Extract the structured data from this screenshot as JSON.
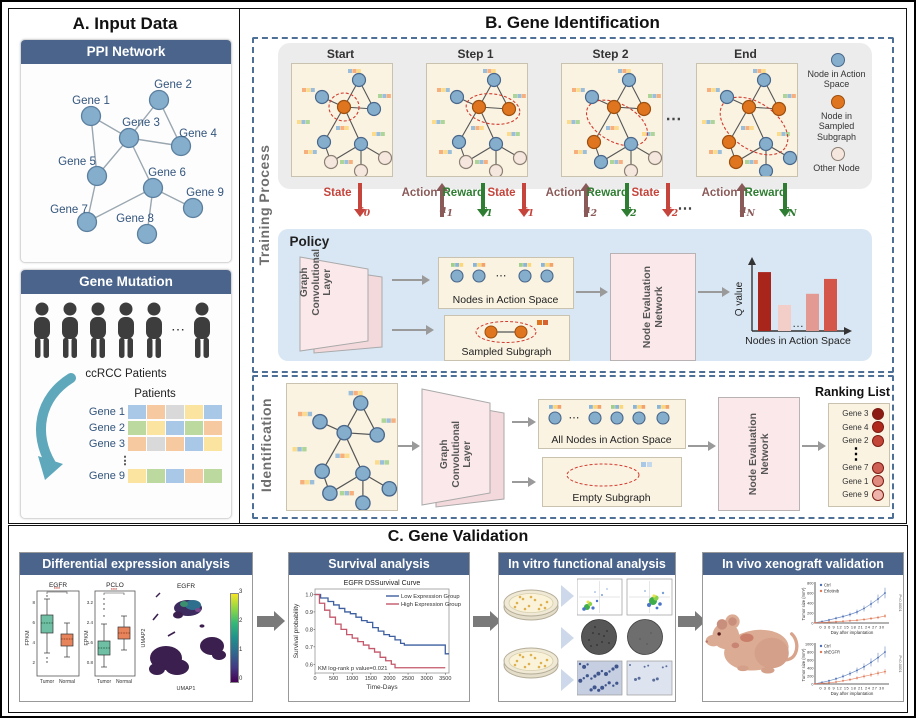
{
  "panelA": {
    "title": "A. Input Data",
    "ppi": {
      "header": "PPI Network",
      "genes": [
        "Gene 1",
        "Gene 2",
        "Gene 3",
        "Gene 4",
        "Gene 5",
        "Gene 6",
        "Gene 7",
        "Gene 8",
        "Gene 9"
      ]
    },
    "mutation": {
      "header": "Gene Mutation",
      "patients_caption": "ccRCC Patients",
      "ellipsis": "⋯",
      "matrix_title": "Patients",
      "rows": [
        {
          "label": "Gene 1",
          "cells": [
            "#a9c7e6",
            "#f6c9a0",
            "#d9d9d9",
            "#fbe3a0",
            "#a9c7e6"
          ]
        },
        {
          "label": "Gene 2",
          "cells": [
            "#bcd9a0",
            "#fbe3a0",
            "#a9c7e6",
            "#bcd9a0",
            "#f6c9a0"
          ]
        },
        {
          "label": "Gene 3",
          "cells": [
            "#f6c9a0",
            "#d9d9d9",
            "#f6c9a0",
            "#a9c7e6",
            "#fbe3a0"
          ]
        },
        {
          "label": "⋮",
          "dots": true
        },
        {
          "label": "Gene 9",
          "cells": [
            "#fbe3a0",
            "#bcd9a0",
            "#a9c7e6",
            "#f6c9a0",
            "#bcd9a0"
          ]
        }
      ]
    }
  },
  "panelB": {
    "title": "B. Gene Identification",
    "training_label": "Training Process",
    "identification_label": "Identification",
    "steps": [
      "Start",
      "Step 1",
      "Step 2",
      "End"
    ],
    "ellipsis": "⋯",
    "legend": [
      {
        "label": "Node in Action Space",
        "color": "#85adcc"
      },
      {
        "label": "Node in Sampled Subgraph",
        "color": "#e0751f"
      },
      {
        "label": "Other Node",
        "color": "#f6e7de"
      }
    ],
    "sig": {
      "state": "State",
      "action": "Action",
      "reward": "Reward",
      "colors": {
        "state": "#c5443c",
        "action": "#8a5a58",
        "reward": "#2f7d32"
      },
      "subs": {
        "s0": {
          "v": "s",
          "i": "0"
        },
        "a1": {
          "v": "a",
          "i": "1"
        },
        "r1": {
          "v": "r",
          "i": "1"
        },
        "s1": {
          "v": "s",
          "i": "1"
        },
        "a2": {
          "v": "a",
          "i": "2"
        },
        "r2": {
          "v": "r",
          "i": "2"
        },
        "s2": {
          "v": "s",
          "i": "2"
        },
        "aN": {
          "v": "a",
          "i": "N"
        },
        "rN": {
          "v": "r",
          "i": "N"
        }
      }
    },
    "policy": {
      "title": "Policy",
      "gcl": "Graph Convolutional Layer",
      "nodes_box": "Nodes in Action Space",
      "box_ellipsis": "⋯",
      "sampled_box": "Sampled Subgraph",
      "nen": "Node Evaluation Network",
      "qchart": {
        "ylabel": "Q value",
        "xlabel": "Nodes in Action Space",
        "bars": [
          0.95,
          0.42,
          null,
          0.6,
          0.84
        ],
        "bar_colors": [
          "#a8251c",
          "#f3cdc8",
          null,
          "#e29a92",
          "#d4564a"
        ]
      }
    },
    "identification": {
      "gcl": "Graph Convolutional Layer",
      "all_nodes_box": "All Nodes in Action Space",
      "empty_box": "Empty Subgraph",
      "nen": "Node Evaluation Network",
      "ranking_title": "Ranking List",
      "ranking": [
        {
          "label": "Gene 3",
          "color": "#8c1a12"
        },
        {
          "label": "Gene 4",
          "color": "#b02a1c"
        },
        {
          "label": "Gene 2",
          "color": "#c44638"
        },
        {
          "label": "⋮",
          "dots": true
        },
        {
          "label": "Gene 7",
          "color": "#cf6055"
        },
        {
          "label": "Gene 1",
          "color": "#e08a80"
        },
        {
          "label": "Gene 9",
          "color": "#eeb3ab"
        }
      ]
    }
  },
  "panelC": {
    "title": "C. Gene Validation",
    "de": {
      "header": "Differential expression analysis",
      "egfr": {
        "title": "EGFR",
        "ylabel": "FPKM",
        "sig": "***",
        "yticks": [
          "8",
          "6",
          "4",
          "2"
        ],
        "xticks": [
          "Tumor",
          "Normal"
        ]
      },
      "pclo": {
        "title": "PCLO",
        "ylabel": "FPKM",
        "sig": "***",
        "yticks": [
          "3.2",
          "2.4",
          "1.6",
          "0.8"
        ],
        "xticks": [
          "Tumor",
          "Normal"
        ]
      },
      "umap": {
        "title": "EGFR",
        "xlabel": "UMAP1",
        "ylabel": "UMAP2",
        "cticks": [
          "3",
          "2",
          "1",
          "0"
        ]
      }
    },
    "survival": {
      "header": "Survival analysis",
      "title": "EGFR DSSurvival Curve",
      "ylabel": "Survival probability",
      "xlabel": "Time-Days",
      "yticks": [
        "1.0",
        "0.9",
        "0.8",
        "0.7",
        "0.6"
      ],
      "xticks": [
        "0",
        "500",
        "1000",
        "1500",
        "2000",
        "2500",
        "3000",
        "3500"
      ],
      "legend": [
        {
          "label": "Low Expression Group",
          "color": "#3d5fa0"
        },
        {
          "label": "High Expression Group",
          "color": "#c4576a"
        }
      ],
      "annotation": "KM log-rank p value=0.021",
      "low": [
        [
          0,
          1
        ],
        [
          150,
          0.98
        ],
        [
          350,
          0.96
        ],
        [
          500,
          0.94
        ],
        [
          650,
          0.92
        ],
        [
          800,
          0.9
        ],
        [
          950,
          0.89
        ],
        [
          1100,
          0.87
        ],
        [
          1250,
          0.85
        ],
        [
          1400,
          0.84
        ],
        [
          1550,
          0.81
        ],
        [
          1700,
          0.79
        ],
        [
          1850,
          0.77
        ],
        [
          2000,
          0.76
        ],
        [
          2150,
          0.74
        ],
        [
          2300,
          0.72
        ],
        [
          2400,
          0.71
        ],
        [
          3400,
          0.71
        ],
        [
          3500,
          0.66
        ],
        [
          3600,
          0.66
        ]
      ],
      "high": [
        [
          0,
          1
        ],
        [
          120,
          0.95
        ],
        [
          260,
          0.91
        ],
        [
          400,
          0.87
        ],
        [
          550,
          0.83
        ],
        [
          700,
          0.8
        ],
        [
          850,
          0.77
        ],
        [
          1000,
          0.75
        ],
        [
          1150,
          0.73
        ],
        [
          1300,
          0.71
        ],
        [
          1450,
          0.69
        ],
        [
          1600,
          0.67
        ],
        [
          1750,
          0.64
        ],
        [
          1900,
          0.62
        ],
        [
          2050,
          0.6
        ],
        [
          2150,
          0.58
        ],
        [
          3500,
          0.58
        ]
      ]
    },
    "invitro": {
      "header": "In vitro functional analysis"
    },
    "invivo": {
      "header": "In vivo xenograft validation",
      "xlabel": "Day after implantation",
      "ylabel": "Tumor size (mm³)",
      "days": [
        0,
        3,
        6,
        9,
        12,
        15,
        18,
        21,
        24,
        27,
        30
      ],
      "xtick_string": "0 3 6 9 12 15 18 21 24 27 30",
      "charts": [
        {
          "legend": [
            {
              "label": "Ctrl",
              "color": "#4a6fb5"
            },
            {
              "label": "Erlotinib",
              "color": "#e07856"
            }
          ],
          "ymax": 800,
          "yticks": [
            "800",
            "600",
            "400",
            "200",
            "0"
          ],
          "pval": "P<0.0001",
          "ctrl": [
            5,
            30,
            60,
            95,
            130,
            170,
            220,
            290,
            380,
            480,
            600
          ],
          "treat": [
            5,
            10,
            18,
            25,
            35,
            45,
            55,
            70,
            90,
            110,
            140
          ]
        },
        {
          "legend": [
            {
              "label": "Ctrl",
              "color": "#4a6fb5"
            },
            {
              "label": "shEGFR",
              "color": "#e07856"
            }
          ],
          "ymax": 1000,
          "yticks": [
            "1000",
            "800",
            "600",
            "400",
            "200",
            "0"
          ],
          "pval": "P<0.0001",
          "ctrl": [
            5,
            40,
            80,
            130,
            190,
            260,
            340,
            430,
            540,
            660,
            800
          ],
          "treat": [
            5,
            15,
            30,
            50,
            80,
            110,
            150,
            190,
            230,
            270,
            310
          ]
        }
      ]
    }
  }
}
